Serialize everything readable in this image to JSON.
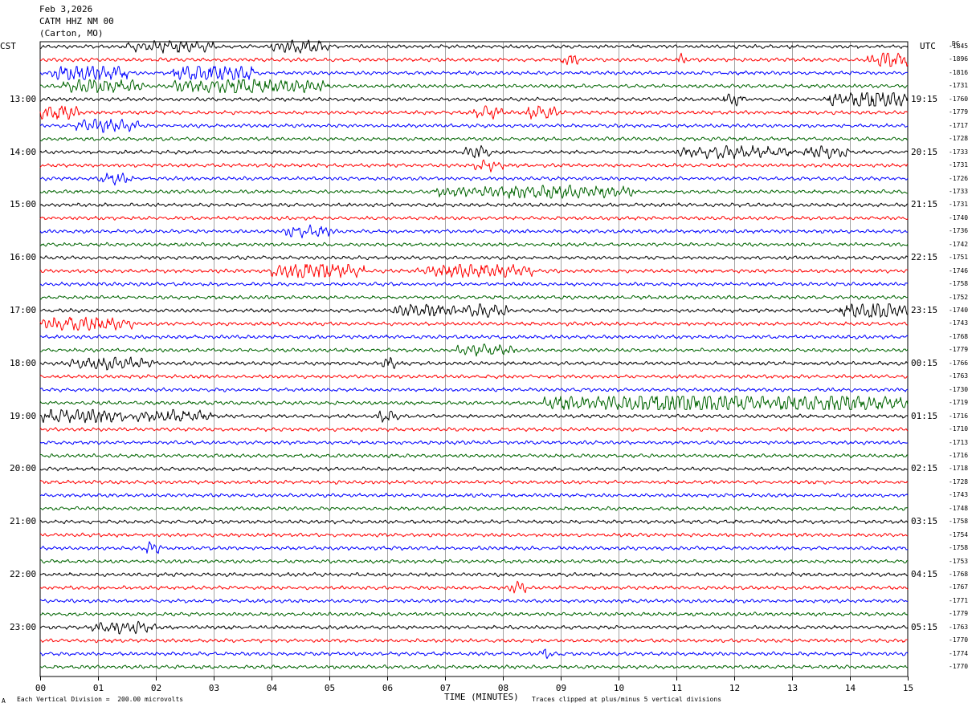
{
  "header": {
    "date": "Feb 3,2026",
    "station": "CATM HHZ NM 00",
    "location": "(Carton, MO)"
  },
  "left_zone": "CST",
  "right_zone": "UTC",
  "dc_label": "DC",
  "footer": {
    "scale_note": "Each Vertical Division =  200.00 microvolts",
    "clip_note": "Traces clipped at plus/minus 5 vertical divisions",
    "corner_mark": "A"
  },
  "colors": {
    "trace_cycle": [
      "#000000",
      "#ff0000",
      "#0000ff",
      "#006400"
    ],
    "grid": "#000000"
  },
  "chart_data": {
    "type": "line",
    "xlabel": "TIME (MINUTES)",
    "xlim": [
      0,
      15
    ],
    "x_ticks": [
      "00",
      "01",
      "02",
      "03",
      "04",
      "05",
      "06",
      "07",
      "08",
      "09",
      "10",
      "11",
      "12",
      "13",
      "14",
      "15"
    ],
    "cst_hour_labels": [
      {
        "row": 4,
        "label": "13:00"
      },
      {
        "row": 8,
        "label": "14:00"
      },
      {
        "row": 12,
        "label": "15:00"
      },
      {
        "row": 16,
        "label": "16:00"
      },
      {
        "row": 20,
        "label": "17:00"
      },
      {
        "row": 24,
        "label": "18:00"
      },
      {
        "row": 28,
        "label": "19:00"
      },
      {
        "row": 32,
        "label": "20:00"
      },
      {
        "row": 36,
        "label": "21:00"
      },
      {
        "row": 40,
        "label": "22:00"
      },
      {
        "row": 44,
        "label": "23:00"
      }
    ],
    "utc_hour_labels": [
      {
        "row": 4,
        "label": "19:15"
      },
      {
        "row": 8,
        "label": "20:15"
      },
      {
        "row": 12,
        "label": "21:15"
      },
      {
        "row": 16,
        "label": "22:15"
      },
      {
        "row": 20,
        "label": "23:15"
      },
      {
        "row": 24,
        "label": "00:15"
      },
      {
        "row": 28,
        "label": "01:15"
      },
      {
        "row": 32,
        "label": "02:15"
      },
      {
        "row": 36,
        "label": "03:15"
      },
      {
        "row": 40,
        "label": "04:15"
      },
      {
        "row": 44,
        "label": "05:15"
      }
    ],
    "dc_offsets": [
      "-1845",
      "-1896",
      "-1816",
      "-1731",
      "-1760",
      "-1779",
      "-1717",
      "-1728",
      "-1733",
      "-1731",
      "-1726",
      "-1733",
      "-1731",
      "-1740",
      "-1736",
      "-1742",
      "-1751",
      "-1746",
      "-1758",
      "-1752",
      "-1740",
      "-1743",
      "-1768",
      "-1779",
      "-1766",
      "-1763",
      "-1730",
      "-1719",
      "-1716",
      "-1710",
      "-1713",
      "-1716",
      "-1718",
      "-1728",
      "-1743",
      "-1748",
      "-1758",
      "-1754",
      "-1758",
      "-1753",
      "-1768",
      "-1767",
      "-1771",
      "-1779",
      "-1763",
      "-1770",
      "-1774",
      "-1770"
    ],
    "bursts": [
      [
        [
          1.5,
          3.0,
          1.2
        ],
        [
          4.0,
          5.0,
          1.3
        ]
      ],
      [
        [
          9.0,
          9.3,
          1.3
        ],
        [
          11.0,
          11.2,
          1.2
        ],
        [
          14.3,
          15.0,
          1.9
        ]
      ],
      [
        [
          0.2,
          1.5,
          1.9
        ],
        [
          2.3,
          3.7,
          2.1
        ]
      ],
      [
        [
          0.4,
          1.8,
          1.5
        ],
        [
          2.3,
          5.0,
          1.6
        ]
      ],
      [
        [
          11.8,
          12.2,
          1.3
        ],
        [
          13.6,
          15.0,
          2.1
        ]
      ],
      [
        [
          0.0,
          0.7,
          1.7
        ],
        [
          7.5,
          8.0,
          1.2
        ],
        [
          8.4,
          9.0,
          1.5
        ]
      ],
      [
        [
          0.6,
          1.7,
          1.5
        ]
      ],
      [],
      [
        [
          7.3,
          7.8,
          1.2
        ],
        [
          11.0,
          13.0,
          1.2
        ],
        [
          13.2,
          14.0,
          1.2
        ]
      ],
      [
        [
          7.5,
          8.0,
          1.1
        ]
      ],
      [
        [
          1.0,
          1.6,
          1.1
        ]
      ],
      [
        [
          6.8,
          10.3,
          1.3
        ]
      ],
      [],
      [],
      [
        [
          4.2,
          5.1,
          1.2
        ]
      ],
      [],
      [],
      [
        [
          4.0,
          5.6,
          1.9
        ],
        [
          6.5,
          8.5,
          1.4
        ]
      ],
      [],
      [],
      [
        [
          6.1,
          7.2,
          1.5
        ],
        [
          7.3,
          8.1,
          1.4
        ],
        [
          13.8,
          15.0,
          1.8
        ]
      ],
      [
        [
          0.0,
          1.6,
          1.7
        ]
      ],
      [],
      [
        [
          7.2,
          8.2,
          1.1
        ]
      ],
      [
        [
          0.5,
          2.0,
          1.1
        ],
        [
          5.9,
          6.2,
          1.2
        ]
      ],
      [],
      [],
      [
        [
          8.7,
          9.6,
          1.5
        ],
        [
          9.6,
          12.3,
          3.0
        ],
        [
          12.3,
          15.0,
          2.0
        ]
      ],
      [
        [
          0.0,
          1.5,
          1.6
        ],
        [
          1.6,
          3.0,
          1.3
        ],
        [
          5.8,
          6.2,
          1.4
        ]
      ],
      [],
      [],
      [],
      [],
      [],
      [],
      [],
      [],
      [],
      [
        [
          1.8,
          2.1,
          1.3
        ]
      ],
      [],
      [],
      [
        [
          8.1,
          8.4,
          1.1
        ]
      ],
      [],
      [],
      [
        [
          0.9,
          2.0,
          1.2
        ]
      ],
      [],
      [
        [
          8.6,
          8.9,
          1.1
        ]
      ],
      []
    ]
  }
}
